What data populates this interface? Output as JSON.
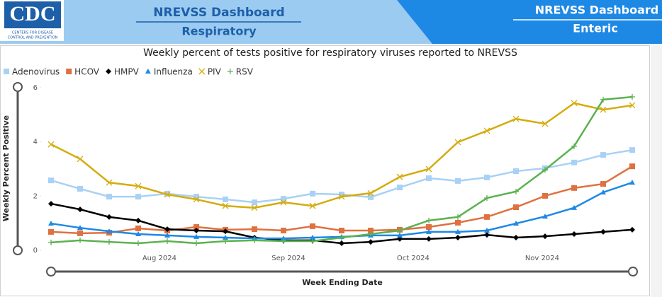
{
  "header": {
    "logo": "CDC",
    "logo_sub_1": "CENTERS FOR DISEASE",
    "logo_sub_2": "CONTROL AND PREVENTION",
    "tab_1_title": "NREVSS Dashboard",
    "tab_1_sub": "Respiratory",
    "tab_2_title": "NREVSS Dashboard",
    "tab_2_sub": "Enteric"
  },
  "chart_data": {
    "type": "line",
    "title": "Weekly percent of tests positive for respiratory viruses reported to NREVSS",
    "x_label": "Week Ending Date",
    "y_label": "Weekly Percent Positive",
    "categories": [
      null,
      null,
      null,
      null,
      null,
      null,
      null,
      null,
      null,
      null,
      null,
      null,
      null,
      null,
      null,
      null,
      null,
      null,
      null,
      null,
      null
    ],
    "xlim": [
      0,
      20
    ],
    "xticks": [
      {
        "value": 3.73,
        "label": "Aug 2024"
      },
      {
        "value": 8.17,
        "label": "Sep 2024"
      },
      {
        "value": 12.46,
        "label": "Oct 2024"
      },
      {
        "value": 16.9,
        "label": "Nov 2024"
      }
    ],
    "ylim": [
      0,
      6
    ],
    "yticks": [
      0,
      2,
      4,
      6
    ],
    "grid": false,
    "legend": "top-left",
    "series": [
      {
        "name": "Adenovirus",
        "color": "#a8d1f5",
        "marker": "square",
        "values": [
          2.58,
          2.27,
          1.98,
          1.98,
          2.09,
          1.98,
          1.88,
          1.77,
          1.9,
          2.09,
          2.06,
          1.96,
          2.32,
          2.66,
          2.56,
          2.69,
          2.92,
          3.03,
          3.24,
          3.52,
          3.7
        ]
      },
      {
        "name": "HCOV",
        "color": "#e0703f",
        "marker": "square",
        "values": [
          0.68,
          0.63,
          0.65,
          0.81,
          0.73,
          0.86,
          0.76,
          0.78,
          0.73,
          0.89,
          0.73,
          0.73,
          0.76,
          0.86,
          1.02,
          1.23,
          1.59,
          2.01,
          2.3,
          2.45,
          3.1
        ]
      },
      {
        "name": "HMPV",
        "color": "#000000",
        "marker": "diamond",
        "values": [
          1.72,
          1.51,
          1.23,
          1.1,
          0.78,
          0.73,
          0.7,
          0.47,
          0.37,
          0.37,
          0.26,
          0.31,
          0.42,
          0.42,
          0.47,
          0.57,
          0.47,
          0.52,
          0.6,
          0.68,
          0.76
        ]
      },
      {
        "name": "Influenza",
        "color": "#1e88e5",
        "marker": "triangle",
        "values": [
          0.99,
          0.83,
          0.7,
          0.6,
          0.55,
          0.5,
          0.47,
          0.44,
          0.44,
          0.47,
          0.5,
          0.55,
          0.55,
          0.68,
          0.68,
          0.73,
          0.99,
          1.25,
          1.57,
          2.14,
          2.5
        ]
      },
      {
        "name": "PIV",
        "color": "#d4ac0d",
        "marker": "x",
        "values": [
          3.91,
          3.37,
          2.5,
          2.37,
          2.06,
          1.88,
          1.64,
          1.57,
          1.77,
          1.64,
          1.98,
          2.11,
          2.71,
          3.0,
          3.99,
          4.41,
          4.85,
          4.67,
          5.43,
          5.19,
          5.35
        ]
      },
      {
        "name": "RSV",
        "color": "#5cb150",
        "marker": "plus",
        "values": [
          0.29,
          0.37,
          0.31,
          0.26,
          0.34,
          0.26,
          0.34,
          0.37,
          0.34,
          0.34,
          0.47,
          0.6,
          0.73,
          1.1,
          1.23,
          1.93,
          2.17,
          2.97,
          3.84,
          5.56,
          5.66
        ]
      }
    ]
  }
}
